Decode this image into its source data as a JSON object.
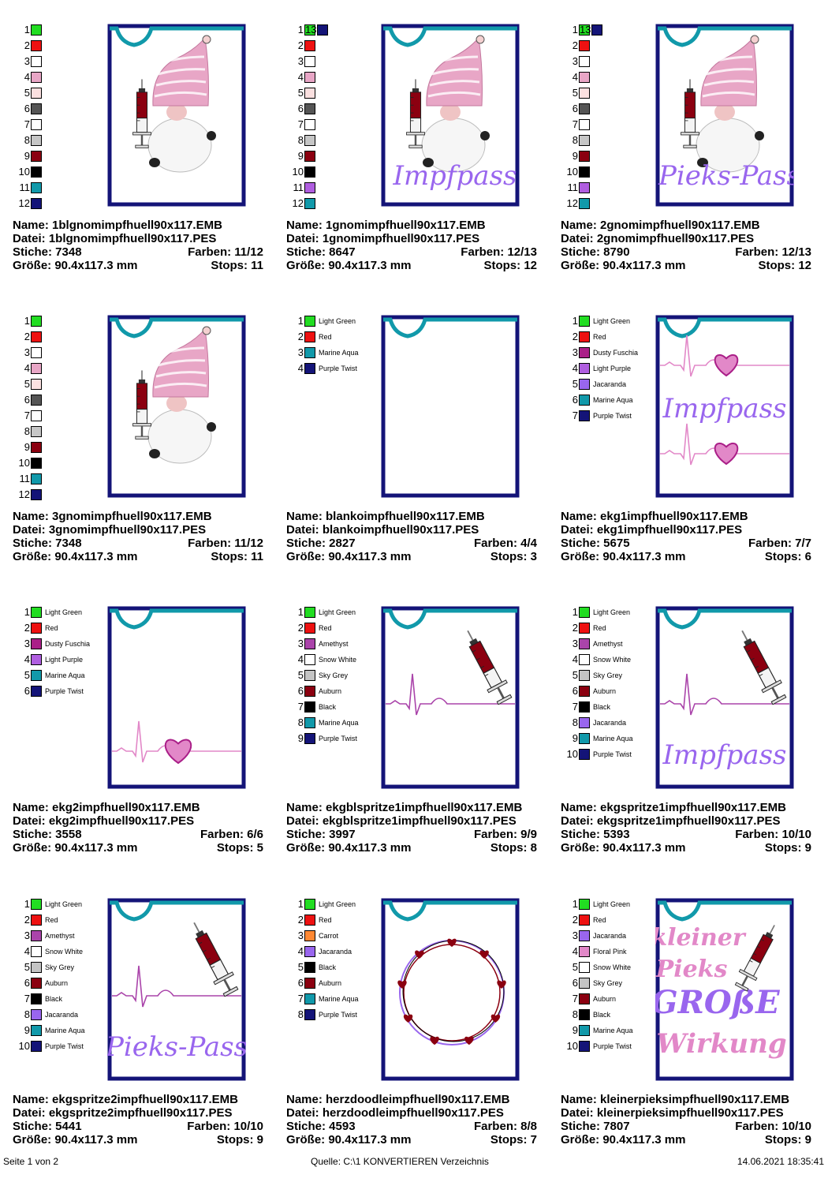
{
  "colors": {
    "Light Green": "#22dd22",
    "Red": "#ee1111",
    "Marine Aqua": "#1199aa",
    "Purple Twist": "#141478",
    "Dusty Fuschia": "#aa1f88",
    "Light Purple": "#b05ee0",
    "Jacaranda": "#9966ee",
    "Amethyst": "#aa44aa",
    "Snow White": "#ffffff",
    "Sky Grey": "#c4c4c4",
    "Auburn": "#8b0010",
    "Black": "#000000",
    "Carrot": "#ff8833",
    "Floral Pink": "#e288c8",
    "c3": "#ffffff",
    "c4": "#e8a6c6",
    "c5": "#fbe0e0",
    "c6": "#555555",
    "c7": "#ffffff",
    "c8": "#c6c6c6",
    "c9": "#8b0010",
    "c10": "#000000",
    "c11": "#1199aa",
    "c12": "#141478",
    "c11b": "#b05ee0",
    "c12b": "#1199aa",
    "c13": "#141478"
  },
  "cards": [
    {
      "design": "gnome",
      "text": "",
      "name": "Name: 1blgnomimpfhuell90x117.EMB",
      "datei": "Datei: 1blgnomimpfhuell90x117.PES",
      "stiche": "Stiche: 7348",
      "farben": "Farben: 11/12",
      "groesse": "Größe: 90.4x117.3 mm",
      "stops": "Stops: 11",
      "extra": null,
      "palette": [
        {
          "n": "1",
          "c": "#22dd22"
        },
        {
          "n": "2",
          "c": "#ee1111"
        },
        {
          "n": "3",
          "c": "#ffffff"
        },
        {
          "n": "4",
          "c": "#e8a6c6"
        },
        {
          "n": "5",
          "c": "#fbe0e0"
        },
        {
          "n": "6",
          "c": "#555555"
        },
        {
          "n": "7",
          "c": "#ffffff"
        },
        {
          "n": "8",
          "c": "#c6c6c6"
        },
        {
          "n": "9",
          "c": "#8b0010"
        },
        {
          "n": "10",
          "c": "#000000"
        },
        {
          "n": "11",
          "c": "#1199aa"
        },
        {
          "n": "12",
          "c": "#141478"
        }
      ]
    },
    {
      "design": "gnome",
      "text": "Impfpass",
      "name": "Name: 1gnomimpfhuell90x117.EMB",
      "datei": "Datei: 1gnomimpfhuell90x117.PES",
      "stiche": "Stiche: 8647",
      "farben": "Farben: 12/13",
      "groesse": "Größe: 90.4x117.3 mm",
      "stops": "Stops: 12",
      "extra": {
        "n": "13",
        "c": "#141478"
      },
      "palette": [
        {
          "n": "1",
          "c": "#22dd22"
        },
        {
          "n": "2",
          "c": "#ee1111"
        },
        {
          "n": "3",
          "c": "#ffffff"
        },
        {
          "n": "4",
          "c": "#e8a6c6"
        },
        {
          "n": "5",
          "c": "#fbe0e0"
        },
        {
          "n": "6",
          "c": "#555555"
        },
        {
          "n": "7",
          "c": "#ffffff"
        },
        {
          "n": "8",
          "c": "#c6c6c6"
        },
        {
          "n": "9",
          "c": "#8b0010"
        },
        {
          "n": "10",
          "c": "#000000"
        },
        {
          "n": "11",
          "c": "#b05ee0"
        },
        {
          "n": "12",
          "c": "#1199aa"
        }
      ]
    },
    {
      "design": "gnome",
      "text": "Pieks-Pass",
      "name": "Name: 2gnomimpfhuell90x117.EMB",
      "datei": "Datei: 2gnomimpfhuell90x117.PES",
      "stiche": "Stiche: 8790",
      "farben": "Farben: 12/13",
      "groesse": "Größe: 90.4x117.3 mm",
      "stops": "Stops: 12",
      "extra": {
        "n": "13",
        "c": "#141478"
      },
      "palette": [
        {
          "n": "1",
          "c": "#22dd22"
        },
        {
          "n": "2",
          "c": "#ee1111"
        },
        {
          "n": "3",
          "c": "#ffffff"
        },
        {
          "n": "4",
          "c": "#e8a6c6"
        },
        {
          "n": "5",
          "c": "#fbe0e0"
        },
        {
          "n": "6",
          "c": "#555555"
        },
        {
          "n": "7",
          "c": "#ffffff"
        },
        {
          "n": "8",
          "c": "#c6c6c6"
        },
        {
          "n": "9",
          "c": "#8b0010"
        },
        {
          "n": "10",
          "c": "#000000"
        },
        {
          "n": "11",
          "c": "#b05ee0"
        },
        {
          "n": "12",
          "c": "#1199aa"
        }
      ]
    },
    {
      "design": "gnome",
      "text": "",
      "name": "Name: 3gnomimpfhuell90x117.EMB",
      "datei": "Datei: 3gnomimpfhuell90x117.PES",
      "stiche": "Stiche: 7348",
      "farben": "Farben: 11/12",
      "groesse": "Größe: 90.4x117.3 mm",
      "stops": "Stops: 11",
      "extra": null,
      "palette": [
        {
          "n": "1",
          "c": "#22dd22"
        },
        {
          "n": "2",
          "c": "#ee1111"
        },
        {
          "n": "3",
          "c": "#ffffff"
        },
        {
          "n": "4",
          "c": "#e8a6c6"
        },
        {
          "n": "5",
          "c": "#fbe0e0"
        },
        {
          "n": "6",
          "c": "#555555"
        },
        {
          "n": "7",
          "c": "#ffffff"
        },
        {
          "n": "8",
          "c": "#c6c6c6"
        },
        {
          "n": "9",
          "c": "#8b0010"
        },
        {
          "n": "10",
          "c": "#000000"
        },
        {
          "n": "11",
          "c": "#1199aa"
        },
        {
          "n": "12",
          "c": "#141478"
        }
      ]
    },
    {
      "design": "blank",
      "text": "",
      "name": "Name: blankoimpfhuell90x117.EMB",
      "datei": "Datei: blankoimpfhuell90x117.PES",
      "stiche": "Stiche: 2827",
      "farben": "Farben: 4/4",
      "groesse": "Größe: 90.4x117.3 mm",
      "stops": "Stops: 3",
      "extra": null,
      "palette": [
        {
          "n": "1",
          "c": "#22dd22",
          "l": "Light Green"
        },
        {
          "n": "2",
          "c": "#ee1111",
          "l": "Red"
        },
        {
          "n": "3",
          "c": "#1199aa",
          "l": "Marine Aqua"
        },
        {
          "n": "4",
          "c": "#141478",
          "l": "Purple Twist"
        }
      ]
    },
    {
      "design": "ekg1",
      "text": "Impfpass",
      "name": "Name: ekg1impfhuell90x117.EMB",
      "datei": "Datei: ekg1impfhuell90x117.PES",
      "stiche": "Stiche: 5675",
      "farben": "Farben: 7/7",
      "groesse": "Größe: 90.4x117.3 mm",
      "stops": "Stops: 6",
      "extra": null,
      "palette": [
        {
          "n": "1",
          "c": "#22dd22",
          "l": "Light Green"
        },
        {
          "n": "2",
          "c": "#ee1111",
          "l": "Red"
        },
        {
          "n": "3",
          "c": "#aa1f88",
          "l": "Dusty Fuschia"
        },
        {
          "n": "4",
          "c": "#b05ee0",
          "l": "Light Purple"
        },
        {
          "n": "5",
          "c": "#9966ee",
          "l": "Jacaranda"
        },
        {
          "n": "6",
          "c": "#1199aa",
          "l": "Marine Aqua"
        },
        {
          "n": "7",
          "c": "#141478",
          "l": "Purple Twist"
        }
      ]
    },
    {
      "design": "ekg2",
      "text": "",
      "name": "Name: ekg2impfhuell90x117.EMB",
      "datei": "Datei: ekg2impfhuell90x117.PES",
      "stiche": "Stiche: 3558",
      "farben": "Farben: 6/6",
      "groesse": "Größe: 90.4x117.3 mm",
      "stops": "Stops: 5",
      "extra": null,
      "palette": [
        {
          "n": "1",
          "c": "#22dd22",
          "l": "Light Green"
        },
        {
          "n": "2",
          "c": "#ee1111",
          "l": "Red"
        },
        {
          "n": "3",
          "c": "#aa1f88",
          "l": "Dusty Fuschia"
        },
        {
          "n": "4",
          "c": "#b05ee0",
          "l": "Light Purple"
        },
        {
          "n": "5",
          "c": "#1199aa",
          "l": "Marine Aqua"
        },
        {
          "n": "6",
          "c": "#141478",
          "l": "Purple Twist"
        }
      ]
    },
    {
      "design": "ekgspritze",
      "text": "",
      "name": "Name: ekgblspritze1impfhuell90x117.EMB",
      "datei": "Datei: ekgblspritze1impfhuell90x117.PES",
      "stiche": "Stiche: 3997",
      "farben": "Farben: 9/9",
      "groesse": "Größe: 90.4x117.3 mm",
      "stops": "Stops: 8",
      "extra": null,
      "palette": [
        {
          "n": "1",
          "c": "#22dd22",
          "l": "Light Green"
        },
        {
          "n": "2",
          "c": "#ee1111",
          "l": "Red"
        },
        {
          "n": "3",
          "c": "#aa44aa",
          "l": "Amethyst"
        },
        {
          "n": "4",
          "c": "#ffffff",
          "l": "Snow White"
        },
        {
          "n": "5",
          "c": "#c4c4c4",
          "l": "Sky Grey"
        },
        {
          "n": "6",
          "c": "#8b0010",
          "l": "Auburn"
        },
        {
          "n": "7",
          "c": "#000000",
          "l": "Black"
        },
        {
          "n": "8",
          "c": "#1199aa",
          "l": "Marine Aqua"
        },
        {
          "n": "9",
          "c": "#141478",
          "l": "Purple Twist"
        }
      ]
    },
    {
      "design": "ekgspritze",
      "text": "Impfpass",
      "name": "Name: ekgspritze1impfhuell90x117.EMB",
      "datei": "Datei: ekgspritze1impfhuell90x117.PES",
      "stiche": "Stiche: 5393",
      "farben": "Farben: 10/10",
      "groesse": "Größe: 90.4x117.3 mm",
      "stops": "Stops: 9",
      "extra": null,
      "palette": [
        {
          "n": "1",
          "c": "#22dd22",
          "l": "Light Green"
        },
        {
          "n": "2",
          "c": "#ee1111",
          "l": "Red"
        },
        {
          "n": "3",
          "c": "#aa44aa",
          "l": "Amethyst"
        },
        {
          "n": "4",
          "c": "#ffffff",
          "l": "Snow White"
        },
        {
          "n": "5",
          "c": "#c4c4c4",
          "l": "Sky Grey"
        },
        {
          "n": "6",
          "c": "#8b0010",
          "l": "Auburn"
        },
        {
          "n": "7",
          "c": "#000000",
          "l": "Black"
        },
        {
          "n": "8",
          "c": "#9966ee",
          "l": "Jacaranda"
        },
        {
          "n": "9",
          "c": "#1199aa",
          "l": "Marine Aqua"
        },
        {
          "n": "10",
          "c": "#141478",
          "l": "Purple Twist"
        }
      ]
    },
    {
      "design": "ekgspritze",
      "text": "Pieks-Pass",
      "name": "Name: ekgspritze2impfhuell90x117.EMB",
      "datei": "Datei: ekgspritze2impfhuell90x117.PES",
      "stiche": "Stiche: 5441",
      "farben": "Farben: 10/10",
      "groesse": "Größe: 90.4x117.3 mm",
      "stops": "Stops: 9",
      "extra": null,
      "palette": [
        {
          "n": "1",
          "c": "#22dd22",
          "l": "Light Green"
        },
        {
          "n": "2",
          "c": "#ee1111",
          "l": "Red"
        },
        {
          "n": "3",
          "c": "#aa44aa",
          "l": "Amethyst"
        },
        {
          "n": "4",
          "c": "#ffffff",
          "l": "Snow White"
        },
        {
          "n": "5",
          "c": "#c4c4c4",
          "l": "Sky Grey"
        },
        {
          "n": "6",
          "c": "#8b0010",
          "l": "Auburn"
        },
        {
          "n": "7",
          "c": "#000000",
          "l": "Black"
        },
        {
          "n": "8",
          "c": "#9966ee",
          "l": "Jacaranda"
        },
        {
          "n": "9",
          "c": "#1199aa",
          "l": "Marine Aqua"
        },
        {
          "n": "10",
          "c": "#141478",
          "l": "Purple Twist"
        }
      ]
    },
    {
      "design": "herz",
      "text": "",
      "name": "Name: herzdoodleimpfhuell90x117.EMB",
      "datei": "Datei: herzdoodleimpfhuell90x117.PES",
      "stiche": "Stiche: 4593",
      "farben": "Farben: 8/8",
      "groesse": "Größe: 90.4x117.3 mm",
      "stops": "Stops: 7",
      "extra": null,
      "palette": [
        {
          "n": "1",
          "c": "#22dd22",
          "l": "Light Green"
        },
        {
          "n": "2",
          "c": "#ee1111",
          "l": "Red"
        },
        {
          "n": "3",
          "c": "#ff8833",
          "l": "Carrot"
        },
        {
          "n": "4",
          "c": "#9966ee",
          "l": "Jacaranda"
        },
        {
          "n": "5",
          "c": "#000000",
          "l": "Black"
        },
        {
          "n": "6",
          "c": "#8b0010",
          "l": "Auburn"
        },
        {
          "n": "7",
          "c": "#1199aa",
          "l": "Marine Aqua"
        },
        {
          "n": "8",
          "c": "#141478",
          "l": "Purple Twist"
        }
      ]
    },
    {
      "design": "kleiner",
      "text": "",
      "name": "Name: kleinerpieksimpfhuell90x117.EMB",
      "datei": "Datei: kleinerpieksimpfhuell90x117.PES",
      "stiche": "Stiche: 7807",
      "farben": "Farben: 10/10",
      "groesse": "Größe: 90.4x117.3 mm",
      "stops": "Stops: 9",
      "extra": null,
      "kleiner": {
        "l1": "kleiner",
        "l2": "Pieks",
        "l3": "GROßE",
        "l4": "Wirkung"
      },
      "palette": [
        {
          "n": "1",
          "c": "#22dd22",
          "l": "Light Green"
        },
        {
          "n": "2",
          "c": "#ee1111",
          "l": "Red"
        },
        {
          "n": "3",
          "c": "#9966ee",
          "l": "Jacaranda"
        },
        {
          "n": "4",
          "c": "#e288c8",
          "l": "Floral Pink"
        },
        {
          "n": "5",
          "c": "#ffffff",
          "l": "Snow White"
        },
        {
          "n": "6",
          "c": "#c4c4c4",
          "l": "Sky Grey"
        },
        {
          "n": "7",
          "c": "#8b0010",
          "l": "Auburn"
        },
        {
          "n": "8",
          "c": "#000000",
          "l": "Black"
        },
        {
          "n": "9",
          "c": "#1199aa",
          "l": "Marine Aqua"
        },
        {
          "n": "10",
          "c": "#141478",
          "l": "Purple Twist"
        }
      ]
    }
  ],
  "footer": {
    "page": "Seite 1 von 2",
    "source": "Quelle: C:\\1 KONVERTIEREN Verzeichnis",
    "date": "14.06.2021 18:35:41"
  }
}
